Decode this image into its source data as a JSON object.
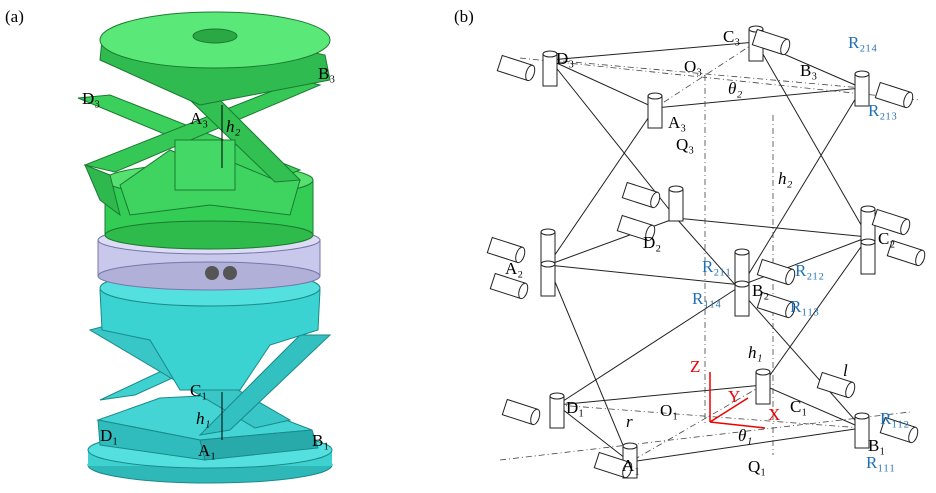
{
  "panels": [
    {
      "label": "(a)",
      "labels": [
        "D₃",
        "A₃",
        "B₃",
        "h₂",
        "C₁",
        "h₁",
        "D₁",
        "A₁",
        "B₁"
      ]
    },
    {
      "label": "(b)",
      "labels": [
        "D₃",
        "C₃",
        "O₃",
        "B₃",
        "θ₂",
        "A₃",
        "Q₃",
        "h₂",
        "D₂",
        "C₂",
        "A₂",
        "B₂",
        "h₁",
        "l",
        "D₁",
        "O₁",
        "C₁",
        "r",
        "θ₁",
        "A₁",
        "B₁",
        "Q₁"
      ],
      "axes": [
        "Z",
        "Y",
        "X"
      ],
      "joints": [
        "R₂₁₄",
        "R₂₁₃",
        "R₂₁₁",
        "R₂₁₂",
        "R₁₁₄",
        "R₁₁₃",
        "R₁₁₂",
        "R₁₁₁"
      ]
    }
  ]
}
